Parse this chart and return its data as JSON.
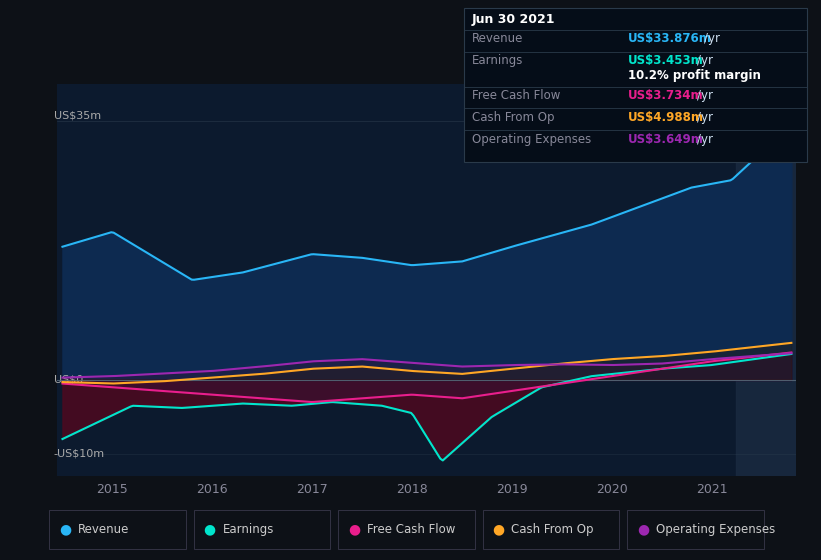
{
  "bg_color": "#0d1117",
  "plot_bg_color": "#0c1a2e",
  "ylabel_top": "US$35m",
  "ylabel_zero": "US$0",
  "ylabel_bottom": "-US$10m",
  "xticklabels": [
    "2015",
    "2016",
    "2017",
    "2018",
    "2019",
    "2020",
    "2021"
  ],
  "tooltip": {
    "date": "Jun 30 2021",
    "revenue_label": "Revenue",
    "revenue_value": "US$33.876m",
    "earnings_label": "Earnings",
    "earnings_value": "US$3.453m",
    "margin": "10.2% profit margin",
    "fcf_label": "Free Cash Flow",
    "fcf_value": "US$3.734m",
    "cashop_label": "Cash From Op",
    "cashop_value": "US$4.988m",
    "opex_label": "Operating Expenses",
    "opex_value": "US$3.649m"
  },
  "legend": [
    {
      "label": "Revenue",
      "color": "#29b6f6"
    },
    {
      "label": "Earnings",
      "color": "#00e5cc"
    },
    {
      "label": "Free Cash Flow",
      "color": "#e91e8c"
    },
    {
      "label": "Cash From Op",
      "color": "#ffa726"
    },
    {
      "label": "Operating Expenses",
      "color": "#9c27b0"
    }
  ],
  "revenue_color": "#29b6f6",
  "earnings_color": "#00e5cc",
  "fcf_color": "#e91e8c",
  "cashop_color": "#ffa726",
  "opex_color": "#9c27b0",
  "ylim": [
    -13,
    40
  ],
  "xlim": [
    2014.45,
    2021.85
  ]
}
